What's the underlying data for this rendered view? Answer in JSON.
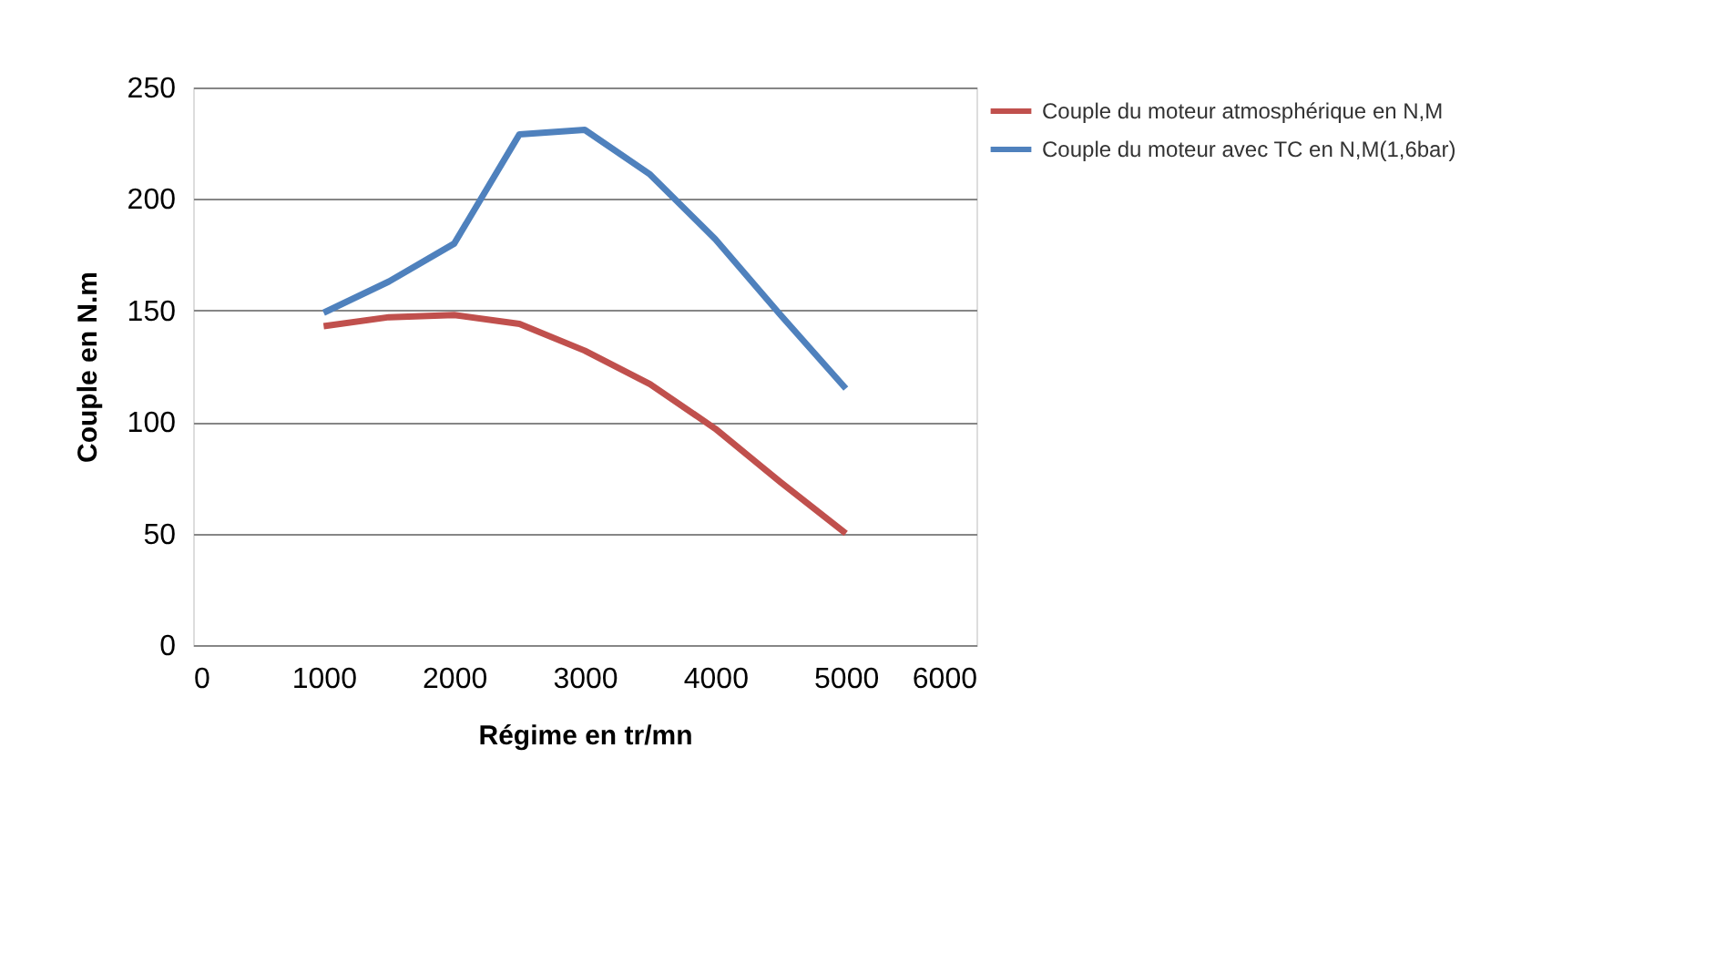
{
  "chart_data": {
    "type": "line",
    "xlabel": "Régime en tr/mn",
    "ylabel": "Couple en N.m",
    "x": [
      1000,
      1500,
      2000,
      2500,
      3000,
      3500,
      4000,
      4500,
      5000
    ],
    "series": [
      {
        "name": "Couple du moteur atmosphérique en N,M",
        "color": "#c0504d",
        "values": [
          143,
          147,
          148,
          144,
          132,
          117,
          97,
          73,
          50
        ]
      },
      {
        "name": "Couple du moteur avec TC en N,M(1,6bar)",
        "color": "#4f81bd",
        "values": [
          149,
          163,
          180,
          229,
          231,
          211,
          182,
          148,
          115
        ]
      }
    ],
    "xlim": [
      0,
      6000
    ],
    "xticks": [
      0,
      1000,
      2000,
      3000,
      4000,
      5000,
      6000
    ],
    "ylim": [
      0,
      250
    ],
    "yticks": [
      0,
      50,
      100,
      150,
      200,
      250
    ],
    "grid": "y",
    "legend": "right",
    "marker": "none",
    "line_style": "solid"
  }
}
